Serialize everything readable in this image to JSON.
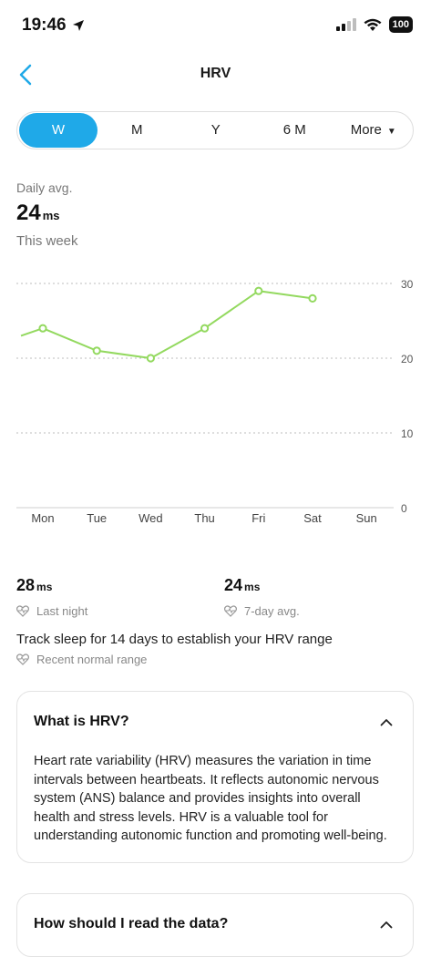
{
  "status": {
    "time": "19:46",
    "battery": "100"
  },
  "nav": {
    "title": "HRV"
  },
  "tabs": [
    {
      "label": "W",
      "active": true
    },
    {
      "label": "M",
      "active": false
    },
    {
      "label": "Y",
      "active": false
    },
    {
      "label": "6 M",
      "active": false
    },
    {
      "label": "More",
      "active": false
    }
  ],
  "summary": {
    "label": "Daily avg.",
    "value": "24",
    "unit": "ms",
    "period": "This week"
  },
  "chart_data": {
    "type": "line",
    "categories": [
      "Mon",
      "Tue",
      "Wed",
      "Thu",
      "Fri",
      "Sat",
      "Sun"
    ],
    "series": [
      {
        "values": [
          24,
          21,
          20,
          24,
          29,
          28,
          null
        ]
      }
    ],
    "start_value": 23,
    "yticks": [
      0,
      10,
      20,
      30
    ],
    "ylim": [
      0,
      30
    ],
    "line_color": "#93d95f",
    "grid": true
  },
  "stats": {
    "last_night": {
      "value": "28",
      "unit": "ms",
      "label": "Last night"
    },
    "seven_day": {
      "value": "24",
      "unit": "ms",
      "label": "7-day avg."
    }
  },
  "track_text": "Track sleep for 14 days to establish your HRV range",
  "range_label": "Recent normal range",
  "cards": [
    {
      "title": "What is HRV?",
      "body": "Heart rate variability (HRV) measures the variation in time intervals between heartbeats. It reflects autonomic nervous system (ANS) balance and provides insights into overall health and stress levels. HRV is a valuable tool for understanding autonomic function and promoting well-being."
    },
    {
      "title": "How should I read the data?"
    }
  ],
  "colors": {
    "accent": "#1fa9e8",
    "line": "#93d95f"
  }
}
